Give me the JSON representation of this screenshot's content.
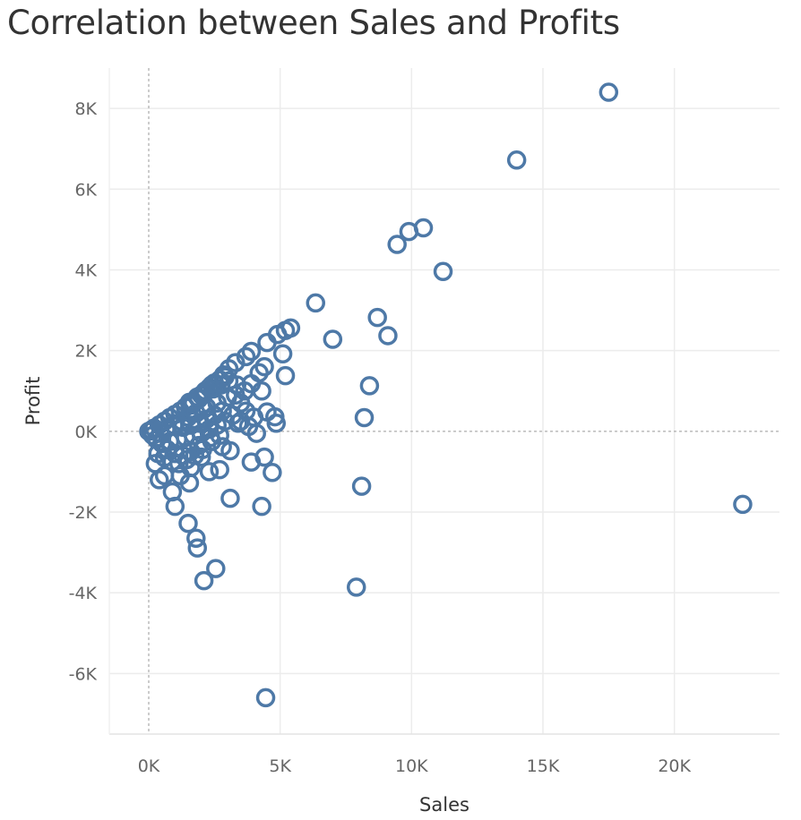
{
  "chart_data": {
    "type": "scatter",
    "title": "Correlation between Sales and Profits",
    "xlabel": "Sales",
    "ylabel": "Profit",
    "xlim": [
      -1500,
      24000
    ],
    "ylim": [
      -7500,
      9000
    ],
    "x_ticks": [
      0,
      5000,
      10000,
      15000,
      20000
    ],
    "x_tick_labels": [
      "0K",
      "5K",
      "10K",
      "15K",
      "20K"
    ],
    "y_ticks": [
      -6000,
      -4000,
      -2000,
      0,
      2000,
      4000,
      6000,
      8000
    ],
    "y_tick_labels": [
      "-6K",
      "-4K",
      "-2K",
      "0K",
      "2K",
      "4K",
      "6K",
      "8K"
    ],
    "grid": true,
    "zero_lines": true,
    "marker": "hollow-circle",
    "color": "#4e79a7",
    "series": [
      {
        "points": [
          [
            17500,
            8400
          ],
          [
            14000,
            6720
          ],
          [
            10450,
            5040
          ],
          [
            9900,
            4950
          ],
          [
            9450,
            4630
          ],
          [
            11200,
            3960
          ],
          [
            6350,
            3180
          ],
          [
            8700,
            2820
          ],
          [
            9100,
            2370
          ],
          [
            7000,
            2280
          ],
          [
            5400,
            2560
          ],
          [
            5200,
            2500
          ],
          [
            4900,
            2400
          ],
          [
            4500,
            2200
          ],
          [
            5100,
            1920
          ],
          [
            3900,
            1980
          ],
          [
            3700,
            1850
          ],
          [
            3300,
            1700
          ],
          [
            3050,
            1550
          ],
          [
            2850,
            1400
          ],
          [
            5200,
            1380
          ],
          [
            4400,
            1600
          ],
          [
            4200,
            1450
          ],
          [
            3900,
            1180
          ],
          [
            4300,
            1000
          ],
          [
            8400,
            1130
          ],
          [
            8200,
            340
          ],
          [
            4800,
            360
          ],
          [
            4500,
            480
          ],
          [
            4850,
            200
          ],
          [
            4000,
            350
          ],
          [
            3800,
            120
          ],
          [
            4100,
            -50
          ],
          [
            3500,
            250
          ],
          [
            3900,
            -760
          ],
          [
            4400,
            -640
          ],
          [
            4700,
            -1020
          ],
          [
            3100,
            -1660
          ],
          [
            4300,
            -1860
          ],
          [
            8100,
            -1360
          ],
          [
            22600,
            -1810
          ],
          [
            1500,
            -2280
          ],
          [
            1800,
            -2650
          ],
          [
            1850,
            -2890
          ],
          [
            2550,
            -3400
          ],
          [
            2100,
            -3700
          ],
          [
            7900,
            -3860
          ],
          [
            4450,
            -6600
          ],
          [
            1000,
            -1860
          ],
          [
            900,
            -1500
          ],
          [
            1550,
            -1280
          ],
          [
            2300,
            -1000
          ],
          [
            2700,
            -950
          ],
          [
            3100,
            -480
          ],
          [
            2800,
            -380
          ],
          [
            2000,
            -640
          ],
          [
            400,
            -1200
          ],
          [
            250,
            -800
          ],
          [
            600,
            -1100
          ],
          [
            1200,
            -1100
          ],
          [
            1600,
            -900
          ],
          [
            2500,
            1200
          ],
          [
            2300,
            1080
          ],
          [
            2100,
            950
          ],
          [
            2700,
            1280
          ],
          [
            2400,
            1150
          ],
          [
            2900,
            1350
          ],
          [
            2000,
            900
          ],
          [
            1900,
            800
          ],
          [
            1700,
            700
          ],
          [
            1600,
            650
          ],
          [
            1400,
            600
          ],
          [
            1200,
            500
          ],
          [
            1000,
            420
          ],
          [
            800,
            340
          ],
          [
            600,
            250
          ],
          [
            400,
            160
          ],
          [
            200,
            80
          ],
          [
            100,
            30
          ],
          [
            50,
            10
          ],
          [
            0,
            0
          ],
          [
            2200,
            600
          ],
          [
            2600,
            700
          ],
          [
            3000,
            850
          ],
          [
            3300,
            900
          ],
          [
            2800,
            500
          ],
          [
            2500,
            400
          ],
          [
            2200,
            300
          ],
          [
            1900,
            200
          ],
          [
            1600,
            150
          ],
          [
            1300,
            100
          ],
          [
            3200,
            400
          ],
          [
            3400,
            200
          ],
          [
            2900,
            250
          ],
          [
            2600,
            150
          ],
          [
            2300,
            50
          ],
          [
            2000,
            -50
          ],
          [
            1700,
            -100
          ],
          [
            1400,
            -150
          ],
          [
            1100,
            -200
          ],
          [
            800,
            -250
          ],
          [
            500,
            -300
          ],
          [
            300,
            -200
          ],
          [
            150,
            -100
          ],
          [
            700,
            -450
          ],
          [
            1000,
            -550
          ],
          [
            1300,
            -600
          ],
          [
            1600,
            -500
          ],
          [
            1900,
            -350
          ],
          [
            2400,
            -250
          ],
          [
            2700,
            -100
          ],
          [
            900,
            -750
          ],
          [
            600,
            -650
          ],
          [
            350,
            -550
          ],
          [
            1150,
            -800
          ],
          [
            1450,
            -700
          ],
          [
            1750,
            -600
          ],
          [
            2050,
            -450
          ],
          [
            2350,
            -150
          ],
          [
            1250,
            250
          ],
          [
            950,
            150
          ],
          [
            650,
            50
          ],
          [
            450,
            -50
          ],
          [
            1500,
            350
          ],
          [
            1800,
            450
          ],
          [
            2100,
            550
          ],
          [
            1550,
            720
          ],
          [
            1850,
            850
          ],
          [
            2150,
            1000
          ],
          [
            2450,
            1050
          ],
          [
            2750,
            1150
          ],
          [
            3050,
            1250
          ],
          [
            3350,
            1150
          ],
          [
            3650,
            1000
          ],
          [
            3500,
            700
          ],
          [
            3700,
            500
          ]
        ]
      }
    ]
  }
}
